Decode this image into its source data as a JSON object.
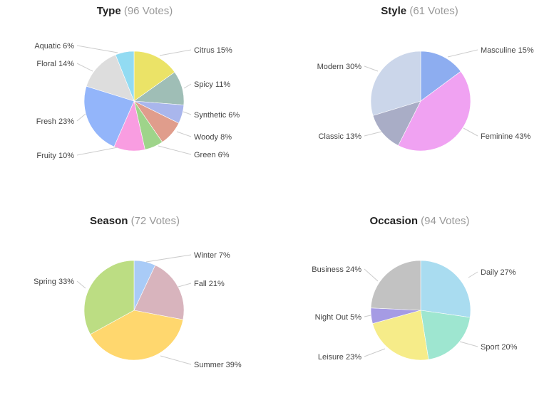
{
  "chart_data": [
    {
      "type": "pie",
      "title": "Type",
      "subtitle": "(96 Votes)",
      "slices": [
        {
          "label": "Citrus",
          "value": 15,
          "display": "15%",
          "color": "#ebe367"
        },
        {
          "label": "Spicy",
          "value": 11,
          "display": "11%",
          "color": "#9fbeb6"
        },
        {
          "label": "Synthetic",
          "value": 6,
          "display": "6%",
          "color": "#a9b6ec"
        },
        {
          "label": "Woody",
          "value": 8,
          "display": "8%",
          "color": "#e09d8c"
        },
        {
          "label": "Green",
          "value": 6,
          "display": "6%",
          "color": "#9ed48a"
        },
        {
          "label": "Fruity",
          "value": 10,
          "display": "10%",
          "color": "#f99de1"
        },
        {
          "label": "Fresh",
          "value": 23,
          "display": "23%",
          "color": "#93b5fa"
        },
        {
          "label": "Floral",
          "value": 14,
          "display": "14%",
          "color": "#dddddd"
        },
        {
          "label": "Aquatic",
          "value": 6,
          "display": "6%",
          "color": "#92dbf2"
        }
      ]
    },
    {
      "type": "pie",
      "title": "Style",
      "subtitle": "(61 Votes)",
      "slices": [
        {
          "label": "Masculine",
          "value": 15,
          "display": "15%",
          "color": "#8dadf0"
        },
        {
          "label": "Feminine",
          "value": 43,
          "display": "43%",
          "color": "#f0a2f2"
        },
        {
          "label": "Classic",
          "value": 13,
          "display": "13%",
          "color": "#a9adc6"
        },
        {
          "label": "Modern",
          "value": 30,
          "display": "30%",
          "color": "#cbd6ea"
        }
      ]
    },
    {
      "type": "pie",
      "title": "Season",
      "subtitle": "(72 Votes)",
      "slices": [
        {
          "label": "Winter",
          "value": 7,
          "display": "7%",
          "color": "#a9cbf7"
        },
        {
          "label": "Fall",
          "value": 21,
          "display": "21%",
          "color": "#d8b4bd"
        },
        {
          "label": "Summer",
          "value": 39,
          "display": "39%",
          "color": "#ffd76e"
        },
        {
          "label": "Spring",
          "value": 33,
          "display": "33%",
          "color": "#bcdd83"
        }
      ]
    },
    {
      "type": "pie",
      "title": "Occasion",
      "subtitle": "(94 Votes)",
      "slices": [
        {
          "label": "Daily",
          "value": 27,
          "display": "27%",
          "color": "#a9dcf0"
        },
        {
          "label": "Sport",
          "value": 20,
          "display": "20%",
          "color": "#9ee6d0"
        },
        {
          "label": "Leisure",
          "value": 23,
          "display": "23%",
          "color": "#f6ec89"
        },
        {
          "label": "Night Out",
          "value": 5,
          "display": "5%",
          "color": "#a59be4"
        },
        {
          "label": "Business",
          "value": 24,
          "display": "24%",
          "color": "#c2c2c2"
        }
      ]
    }
  ]
}
